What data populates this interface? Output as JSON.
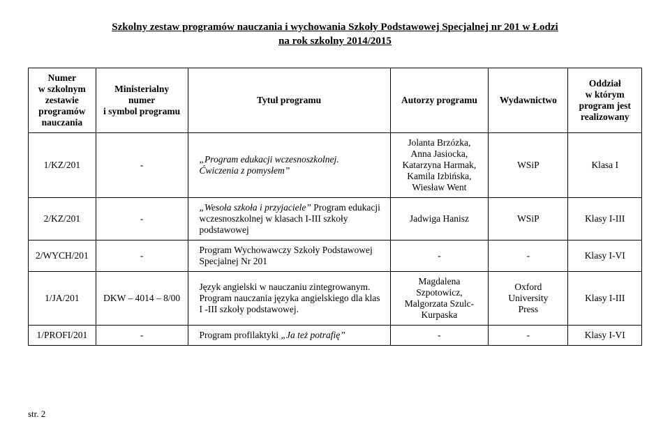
{
  "title_line1": "Szkolny zestaw programów nauczania i wychowania Szkoły Podstawowej Specjalnej nr 201 w Łodzi",
  "title_line2": "na rok szkolny 2014/2015",
  "headers": {
    "c1": "Numer\nw szkolnym\nzestawie\nprogramów\nnauczania",
    "c2": "Ministerialny\nnumer\ni symbol programu",
    "c3": "Tytuł programu",
    "c4": "Autorzy programu",
    "c5": "Wydawnictwo",
    "c6": "Oddział\nw którym\nprogram jest\nrealizowany"
  },
  "rows": [
    {
      "num": "1/KZ/201",
      "min": "-",
      "title_html": "<span class=\"italic\">„Program edukacji wczesnoszkolnej.<br>Ćwiczenia z pomysłem”</span>",
      "authors": "Jolanta Brzózka,\nAnna Jasiocka,\nKatarzyna Harmak,\nKamila Izbińska,\nWiesław Went",
      "pub": "WSiP",
      "cls": "Klasa I"
    },
    {
      "num": "2/KZ/201",
      "min": "-",
      "title_html": "<span class=\"italic\">„Wesoła szkoła i przyjaciele”</span> Program edukacji wczesnoszkolnej  w klasach I-III szkoły podstawowej",
      "authors": "Jadwiga Hanisz",
      "pub": "WSiP",
      "cls": "Klasy I-III"
    },
    {
      "num": "2/WYCH/201",
      "min": "-",
      "title_html": "Program Wychowawczy Szkoły Podstawowej Specjalnej Nr 201",
      "authors": "-",
      "pub": "-",
      "cls": "Klasy I-VI"
    },
    {
      "num": "1/JA/201",
      "min": "DKW – 4014 – 8/00",
      "title_html": "Język angielski w nauczaniu zintegrowanym. Program nauczania języka angielskiego dla klas I -III szkoły podstawowej.",
      "authors": "Magdalena\nSzpotowicz,\nMalgorzata Szulc-\nKurpaska",
      "pub": "Oxford\nUniversity\nPress",
      "cls": "Klasy I-III"
    },
    {
      "num": "1/PROFI/201",
      "min": "-",
      "title_html": "Program profilaktyki <span class=\"italic\">„Ja też potrafię”</span>",
      "authors": "-",
      "pub": "-",
      "cls": "Klasy I-VI"
    }
  ],
  "page_label": "str. 2"
}
